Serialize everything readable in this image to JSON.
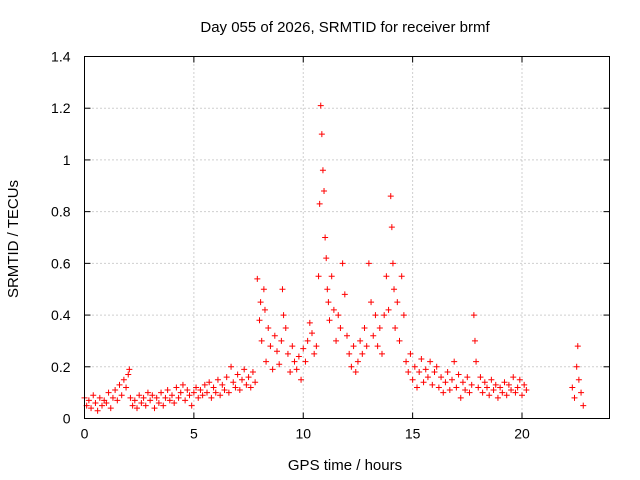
{
  "chart_data": {
    "type": "scatter",
    "title": "Day 055 of 2026, SRMTID for receiver brmf",
    "xlabel": "GPS time / hours",
    "ylabel": "SRMTID / TECUs",
    "xlim": [
      0,
      24
    ],
    "ylim": [
      0,
      1.4
    ],
    "xticks": [
      0,
      5,
      10,
      15,
      20
    ],
    "xtick_labels": [
      "0",
      "5",
      "10",
      "15",
      "20"
    ],
    "yticks": [
      0,
      0.2,
      0.4,
      0.6,
      0.8,
      1.0,
      1.2,
      1.4
    ],
    "ytick_labels": [
      "0",
      "0.2",
      "0.4",
      "0.6",
      "0.8",
      "1",
      "1.2",
      "1.4"
    ],
    "grid": true,
    "marker": "+",
    "series": [
      {
        "name": "SRMTID",
        "color": "#ff0000",
        "points": [
          [
            0.0,
            0.08
          ],
          [
            0.1,
            0.05
          ],
          [
            0.2,
            0.07
          ],
          [
            0.3,
            0.04
          ],
          [
            0.4,
            0.09
          ],
          [
            0.5,
            0.06
          ],
          [
            0.6,
            0.03
          ],
          [
            0.7,
            0.08
          ],
          [
            0.8,
            0.05
          ],
          [
            0.9,
            0.07
          ],
          [
            1.0,
            0.06
          ],
          [
            1.1,
            0.1
          ],
          [
            1.2,
            0.04
          ],
          [
            1.3,
            0.08
          ],
          [
            1.4,
            0.11
          ],
          [
            1.5,
            0.07
          ],
          [
            1.6,
            0.13
          ],
          [
            1.7,
            0.09
          ],
          [
            1.8,
            0.15
          ],
          [
            1.9,
            0.12
          ],
          [
            2.0,
            0.17
          ],
          [
            2.05,
            0.19
          ],
          [
            2.1,
            0.08
          ],
          [
            2.2,
            0.05
          ],
          [
            2.3,
            0.07
          ],
          [
            2.4,
            0.04
          ],
          [
            2.5,
            0.09
          ],
          [
            2.6,
            0.06
          ],
          [
            2.7,
            0.08
          ],
          [
            2.8,
            0.05
          ],
          [
            2.9,
            0.1
          ],
          [
            3.0,
            0.07
          ],
          [
            3.1,
            0.09
          ],
          [
            3.2,
            0.04
          ],
          [
            3.3,
            0.08
          ],
          [
            3.4,
            0.06
          ],
          [
            3.5,
            0.1
          ],
          [
            3.6,
            0.05
          ],
          [
            3.7,
            0.08
          ],
          [
            3.8,
            0.11
          ],
          [
            3.9,
            0.07
          ],
          [
            4.0,
            0.09
          ],
          [
            4.1,
            0.06
          ],
          [
            4.2,
            0.12
          ],
          [
            4.3,
            0.08
          ],
          [
            4.4,
            0.1
          ],
          [
            4.5,
            0.13
          ],
          [
            4.6,
            0.07
          ],
          [
            4.7,
            0.11
          ],
          [
            4.8,
            0.09
          ],
          [
            4.9,
            0.05
          ],
          [
            5.0,
            0.1
          ],
          [
            5.1,
            0.12
          ],
          [
            5.2,
            0.08
          ],
          [
            5.3,
            0.11
          ],
          [
            5.4,
            0.09
          ],
          [
            5.5,
            0.13
          ],
          [
            5.6,
            0.1
          ],
          [
            5.7,
            0.14
          ],
          [
            5.8,
            0.08
          ],
          [
            5.9,
            0.12
          ],
          [
            6.0,
            0.1
          ],
          [
            6.1,
            0.15
          ],
          [
            6.2,
            0.09
          ],
          [
            6.3,
            0.13
          ],
          [
            6.4,
            0.11
          ],
          [
            6.5,
            0.16
          ],
          [
            6.6,
            0.1
          ],
          [
            6.7,
            0.2
          ],
          [
            6.8,
            0.14
          ],
          [
            6.9,
            0.12
          ],
          [
            7.0,
            0.17
          ],
          [
            7.1,
            0.11
          ],
          [
            7.2,
            0.15
          ],
          [
            7.3,
            0.19
          ],
          [
            7.4,
            0.13
          ],
          [
            7.5,
            0.16
          ],
          [
            7.6,
            0.12
          ],
          [
            7.7,
            0.18
          ],
          [
            7.8,
            0.14
          ],
          [
            7.9,
            0.54
          ],
          [
            8.0,
            0.38
          ],
          [
            8.05,
            0.45
          ],
          [
            8.1,
            0.3
          ],
          [
            8.2,
            0.5
          ],
          [
            8.25,
            0.42
          ],
          [
            8.3,
            0.22
          ],
          [
            8.4,
            0.35
          ],
          [
            8.5,
            0.28
          ],
          [
            8.6,
            0.19
          ],
          [
            8.7,
            0.32
          ],
          [
            8.8,
            0.26
          ],
          [
            8.9,
            0.21
          ],
          [
            9.0,
            0.3
          ],
          [
            9.05,
            0.5
          ],
          [
            9.1,
            0.4
          ],
          [
            9.2,
            0.35
          ],
          [
            9.3,
            0.25
          ],
          [
            9.4,
            0.18
          ],
          [
            9.5,
            0.28
          ],
          [
            9.6,
            0.22
          ],
          [
            9.7,
            0.19
          ],
          [
            9.8,
            0.24
          ],
          [
            9.9,
            0.15
          ],
          [
            10.0,
            0.27
          ],
          [
            10.1,
            0.22
          ],
          [
            10.2,
            0.3
          ],
          [
            10.3,
            0.37
          ],
          [
            10.4,
            0.33
          ],
          [
            10.5,
            0.25
          ],
          [
            10.6,
            0.28
          ],
          [
            10.7,
            0.55
          ],
          [
            10.75,
            0.83
          ],
          [
            10.8,
            1.21
          ],
          [
            10.85,
            1.1
          ],
          [
            10.9,
            0.96
          ],
          [
            10.95,
            0.88
          ],
          [
            11.0,
            0.7
          ],
          [
            11.05,
            0.62
          ],
          [
            11.1,
            0.5
          ],
          [
            11.15,
            0.45
          ],
          [
            11.2,
            0.38
          ],
          [
            11.3,
            0.55
          ],
          [
            11.4,
            0.42
          ],
          [
            11.5,
            0.3
          ],
          [
            11.6,
            0.4
          ],
          [
            11.7,
            0.35
          ],
          [
            11.8,
            0.6
          ],
          [
            11.9,
            0.48
          ],
          [
            12.0,
            0.32
          ],
          [
            12.1,
            0.25
          ],
          [
            12.2,
            0.2
          ],
          [
            12.3,
            0.28
          ],
          [
            12.4,
            0.18
          ],
          [
            12.5,
            0.22
          ],
          [
            12.6,
            0.3
          ],
          [
            12.7,
            0.25
          ],
          [
            12.8,
            0.35
          ],
          [
            12.9,
            0.28
          ],
          [
            13.0,
            0.6
          ],
          [
            13.1,
            0.45
          ],
          [
            13.2,
            0.32
          ],
          [
            13.3,
            0.4
          ],
          [
            13.4,
            0.28
          ],
          [
            13.5,
            0.35
          ],
          [
            13.6,
            0.25
          ],
          [
            13.7,
            0.4
          ],
          [
            13.8,
            0.55
          ],
          [
            13.9,
            0.42
          ],
          [
            14.0,
            0.86
          ],
          [
            14.05,
            0.74
          ],
          [
            14.1,
            0.6
          ],
          [
            14.15,
            0.5
          ],
          [
            14.2,
            0.35
          ],
          [
            14.3,
            0.45
          ],
          [
            14.4,
            0.3
          ],
          [
            14.5,
            0.55
          ],
          [
            14.6,
            0.4
          ],
          [
            14.7,
            0.22
          ],
          [
            14.8,
            0.18
          ],
          [
            14.9,
            0.25
          ],
          [
            15.0,
            0.15
          ],
          [
            15.1,
            0.2
          ],
          [
            15.2,
            0.12
          ],
          [
            15.3,
            0.18
          ],
          [
            15.4,
            0.23
          ],
          [
            15.5,
            0.14
          ],
          [
            15.6,
            0.19
          ],
          [
            15.7,
            0.16
          ],
          [
            15.8,
            0.22
          ],
          [
            15.9,
            0.13
          ],
          [
            16.0,
            0.18
          ],
          [
            16.1,
            0.2
          ],
          [
            16.2,
            0.12
          ],
          [
            16.3,
            0.16
          ],
          [
            16.4,
            0.1
          ],
          [
            16.5,
            0.14
          ],
          [
            16.6,
            0.18
          ],
          [
            16.7,
            0.11
          ],
          [
            16.8,
            0.15
          ],
          [
            16.9,
            0.22
          ],
          [
            17.0,
            0.12
          ],
          [
            17.1,
            0.17
          ],
          [
            17.2,
            0.08
          ],
          [
            17.3,
            0.14
          ],
          [
            17.4,
            0.11
          ],
          [
            17.5,
            0.16
          ],
          [
            17.6,
            0.1
          ],
          [
            17.7,
            0.13
          ],
          [
            17.8,
            0.4
          ],
          [
            17.85,
            0.3
          ],
          [
            17.9,
            0.22
          ],
          [
            18.0,
            0.12
          ],
          [
            18.1,
            0.16
          ],
          [
            18.2,
            0.1
          ],
          [
            18.3,
            0.14
          ],
          [
            18.4,
            0.12
          ],
          [
            18.5,
            0.09
          ],
          [
            18.6,
            0.15
          ],
          [
            18.7,
            0.11
          ],
          [
            18.8,
            0.13
          ],
          [
            18.9,
            0.08
          ],
          [
            19.0,
            0.12
          ],
          [
            19.1,
            0.1
          ],
          [
            19.2,
            0.14
          ],
          [
            19.3,
            0.09
          ],
          [
            19.4,
            0.13
          ],
          [
            19.5,
            0.11
          ],
          [
            19.6,
            0.16
          ],
          [
            19.7,
            0.1
          ],
          [
            19.8,
            0.12
          ],
          [
            19.9,
            0.15
          ],
          [
            20.0,
            0.09
          ],
          [
            20.1,
            0.13
          ],
          [
            20.2,
            0.11
          ],
          [
            22.3,
            0.12
          ],
          [
            22.4,
            0.08
          ],
          [
            22.5,
            0.2
          ],
          [
            22.55,
            0.28
          ],
          [
            22.6,
            0.15
          ],
          [
            22.7,
            0.1
          ],
          [
            22.8,
            0.05
          ]
        ]
      }
    ]
  }
}
